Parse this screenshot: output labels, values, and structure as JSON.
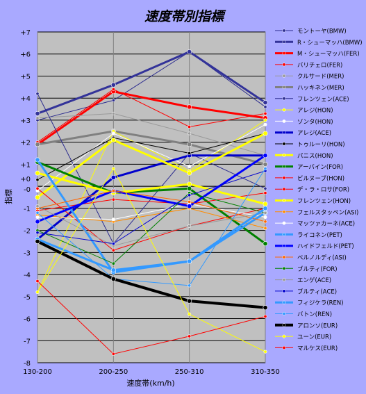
{
  "chart_data": {
    "type": "line",
    "title": "速度帯別指標",
    "xlabel": "速度帯(km/h)",
    "ylabel": "指標",
    "categories": [
      "130-200",
      "200-250",
      "250-310",
      "310-350"
    ],
    "ylim": [
      -8,
      7
    ],
    "yticks": [
      "+7",
      "+6",
      "+5",
      "+4",
      "+3",
      "+2",
      "+1",
      "+0",
      "-0",
      "-1",
      "-2",
      "-3",
      "-4",
      "-5",
      "-6",
      "-7",
      "-8"
    ],
    "grid": true,
    "legend_position": "right",
    "series": [
      {
        "name": "モントーヤ(BMW)",
        "color": "#2b2b8f",
        "width": 1,
        "values": [
          3.0,
          3.9,
          6.1,
          3.6
        ]
      },
      {
        "name": "R・シューマッハ(BMW)",
        "color": "#333399",
        "width": 3,
        "values": [
          3.3,
          4.6,
          6.1,
          3.8
        ]
      },
      {
        "name": "M・シューマッハ(FER)",
        "color": "#ff0000",
        "width": 3,
        "values": [
          1.9,
          4.3,
          3.6,
          3.1
        ]
      },
      {
        "name": "バリチェロ(FER)",
        "color": "#ff0000",
        "width": 1,
        "values": [
          2.0,
          4.4,
          2.7,
          3.3
        ]
      },
      {
        "name": "クルサード(MER)",
        "color": "#999999",
        "width": 1,
        "values": [
          3.1,
          3.3,
          2.4,
          1.4
        ]
      },
      {
        "name": "ハッキネン(MER)",
        "color": "#808080",
        "width": 3,
        "values": [
          1.9,
          2.5,
          1.9,
          1.0
        ]
      },
      {
        "name": "フレンツェン(ACE)",
        "color": "#2b2b8f",
        "width": 1,
        "values": [
          4.2,
          -2.6,
          1.5,
          -0.1
        ]
      },
      {
        "name": "アレジ(HON)",
        "color": "#ffff00",
        "width": 1,
        "values": [
          -4.8,
          2.5,
          0.7,
          3.0
        ]
      },
      {
        "name": "ゾンタ(HON)",
        "color": "#ffffff",
        "width": 1,
        "values": [
          -0.2,
          2.4,
          0.9,
          2.8
        ]
      },
      {
        "name": "アレジ(ACE)",
        "color": "#0000cc",
        "width": 3,
        "values": [
          -2.4,
          0.4,
          1.4,
          1.4
        ]
      },
      {
        "name": "トゥルーリ(HON)",
        "color": "#000000",
        "width": 1,
        "values": [
          0.3,
          2.2,
          1.5,
          2.4
        ]
      },
      {
        "name": "パニス(HON)",
        "color": "#ffff00",
        "width": 3,
        "values": [
          -0.5,
          2.1,
          0.6,
          2.4
        ]
      },
      {
        "name": "アーバイン(FOR)",
        "color": "#008000",
        "width": 3,
        "values": [
          1.1,
          -0.3,
          -0.1,
          -2.6
        ]
      },
      {
        "name": "ビルヌーブ(HON)",
        "color": "#ff0000",
        "width": 1,
        "values": [
          -1.1,
          -0.6,
          -0.8,
          -0.3
        ]
      },
      {
        "name": "デ・ラ・ロサ(FOR)",
        "color": "#ff0000",
        "width": 1,
        "values": [
          -0.1,
          -2.9,
          -1.8,
          -1.0
        ]
      },
      {
        "name": "フレンツェン(HON)",
        "color": "#ffff00",
        "width": 3,
        "values": [
          0.6,
          -0.3,
          0.1,
          -0.8
        ]
      },
      {
        "name": "フェルスタッペン(ASI)",
        "color": "#ff8c00",
        "width": 1,
        "values": [
          -1.3,
          -1.6,
          -1.0,
          -1.9
        ]
      },
      {
        "name": "マッツァカーネ(ACE)",
        "color": "#ffffff",
        "width": 1,
        "values": [
          -1.4,
          -1.5,
          -0.8,
          -1.4
        ]
      },
      {
        "name": "ライコネン(PET)",
        "color": "#3399ff",
        "width": 3,
        "values": [
          1.2,
          -3.9,
          -3.4,
          -1.2
        ]
      },
      {
        "name": "ハイドフェルド(PET)",
        "color": "#0000ff",
        "width": 3,
        "values": [
          -1.6,
          -0.2,
          -0.9,
          1.4
        ]
      },
      {
        "name": "ベルノルディ(ASI)",
        "color": "#ff6600",
        "width": 1,
        "values": [
          -1.0,
          -0.2,
          -0.7,
          -1.6
        ]
      },
      {
        "name": "ブルティ(FOR)",
        "color": "#008000",
        "width": 1,
        "values": [
          -2.0,
          -3.5,
          -0.3,
          -1.2
        ]
      },
      {
        "name": "エンゲ(ACE)",
        "color": "#999999",
        "width": 1,
        "values": [
          -0.9,
          -2.7,
          -1.8,
          -1.2
        ]
      },
      {
        "name": "ブルティ(ACE)",
        "color": "#0000cc",
        "width": 1,
        "values": [
          -2.1,
          -2.6,
          -0.4,
          0.7
        ]
      },
      {
        "name": "フィジケラ(REN)",
        "color": "#3399ff",
        "width": 3,
        "values": [
          -2.4,
          -3.8,
          -3.4,
          -1.0
        ]
      },
      {
        "name": "バトン(REN)",
        "color": "#3399ff",
        "width": 1,
        "values": [
          -1.2,
          -4.2,
          -4.5,
          0.8
        ]
      },
      {
        "name": "アロンソ(EUR)",
        "color": "#000000",
        "width": 4,
        "values": [
          -2.5,
          -4.2,
          -5.2,
          -5.5
        ]
      },
      {
        "name": "ユーン(EUR)",
        "color": "#ffff00",
        "width": 1,
        "values": [
          -4.8,
          0.8,
          -5.8,
          -7.5
        ]
      },
      {
        "name": "マルケス(EUR)",
        "color": "#ff0000",
        "width": 1,
        "values": [
          -4.3,
          -7.6,
          -6.8,
          -5.9
        ]
      }
    ]
  }
}
